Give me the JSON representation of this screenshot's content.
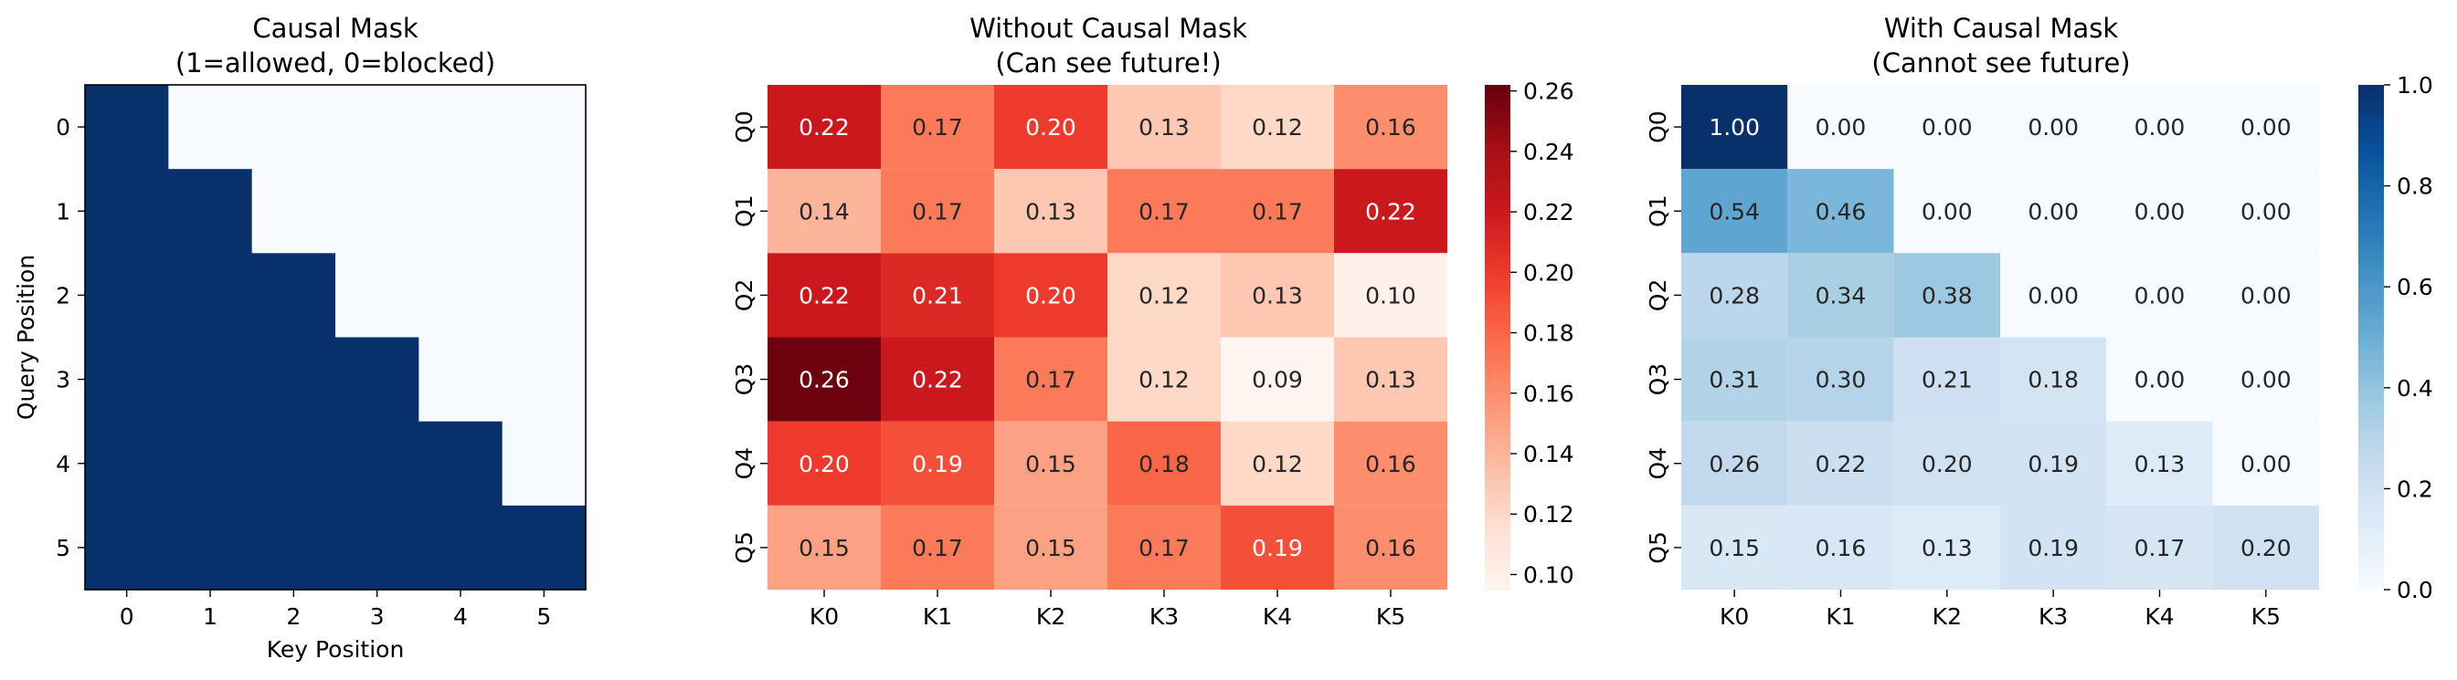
{
  "chart_data": [
    {
      "type": "heatmap",
      "title_lines": [
        "Causal Mask",
        "(1=allowed, 0=blocked)"
      ],
      "xlabel": "Key Position",
      "ylabel": "Query Position",
      "x_ticklabels": [
        "0",
        "1",
        "2",
        "3",
        "4",
        "5"
      ],
      "y_ticklabels": [
        "0",
        "1",
        "2",
        "3",
        "4",
        "5"
      ],
      "colormap": "Blues",
      "clim": [
        0,
        1
      ],
      "values": [
        [
          1,
          0,
          0,
          0,
          0,
          0
        ],
        [
          1,
          1,
          0,
          0,
          0,
          0
        ],
        [
          1,
          1,
          1,
          0,
          0,
          0
        ],
        [
          1,
          1,
          1,
          1,
          0,
          0
        ],
        [
          1,
          1,
          1,
          1,
          1,
          0
        ],
        [
          1,
          1,
          1,
          1,
          1,
          1
        ]
      ]
    },
    {
      "type": "heatmap",
      "title_lines": [
        "Without Causal Mask",
        "(Can see future!)"
      ],
      "xlabel": "",
      "ylabel": "",
      "x_ticklabels": [
        "K0",
        "K1",
        "K2",
        "K3",
        "K4",
        "K5"
      ],
      "y_ticklabels": [
        "Q0",
        "Q1",
        "Q2",
        "Q3",
        "Q4",
        "Q5"
      ],
      "colormap": "Reds",
      "clim": [
        0.095,
        0.262
      ],
      "colorbar_ticks": [
        "0.10",
        "0.12",
        "0.14",
        "0.16",
        "0.18",
        "0.20",
        "0.22",
        "0.24",
        "0.26"
      ],
      "annotations": true,
      "values": [
        [
          0.22,
          0.17,
          0.2,
          0.13,
          0.12,
          0.16
        ],
        [
          0.14,
          0.17,
          0.13,
          0.17,
          0.17,
          0.22
        ],
        [
          0.22,
          0.21,
          0.2,
          0.12,
          0.13,
          0.1
        ],
        [
          0.26,
          0.22,
          0.17,
          0.12,
          0.09,
          0.13
        ],
        [
          0.2,
          0.19,
          0.15,
          0.18,
          0.12,
          0.16
        ],
        [
          0.15,
          0.17,
          0.15,
          0.17,
          0.19,
          0.16
        ]
      ]
    },
    {
      "type": "heatmap",
      "title_lines": [
        "With Causal Mask",
        "(Cannot see future)"
      ],
      "xlabel": "",
      "ylabel": "",
      "x_ticklabels": [
        "K0",
        "K1",
        "K2",
        "K3",
        "K4",
        "K5"
      ],
      "y_ticklabels": [
        "Q0",
        "Q1",
        "Q2",
        "Q3",
        "Q4",
        "Q5"
      ],
      "colormap": "Blues",
      "clim": [
        0,
        1
      ],
      "colorbar_ticks": [
        "0.0",
        "0.2",
        "0.4",
        "0.6",
        "0.8",
        "1.0"
      ],
      "annotations": true,
      "values": [
        [
          1.0,
          0.0,
          0.0,
          0.0,
          0.0,
          0.0
        ],
        [
          0.54,
          0.46,
          0.0,
          0.0,
          0.0,
          0.0
        ],
        [
          0.28,
          0.34,
          0.38,
          0.0,
          0.0,
          0.0
        ],
        [
          0.31,
          0.3,
          0.21,
          0.18,
          0.0,
          0.0
        ],
        [
          0.26,
          0.22,
          0.2,
          0.19,
          0.13,
          0.0
        ],
        [
          0.15,
          0.16,
          0.13,
          0.19,
          0.17,
          0.2
        ]
      ]
    }
  ]
}
